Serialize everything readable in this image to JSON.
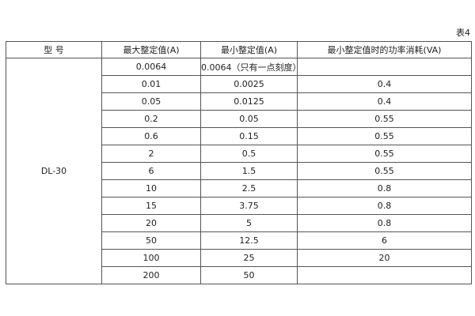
{
  "caption": "表4",
  "headers": [
    "型 号",
    "最大整定值(A)",
    "最小整定值(A)",
    "最小整定值时的功率消耗(VA)"
  ],
  "model": "DL-30",
  "rows": [
    [
      "0.0064",
      "0.0064（只有一点刻度）",
      ""
    ],
    [
      "0.01",
      "0.0025",
      "0.4"
    ],
    [
      "0.05",
      "0.0125",
      "0.4"
    ],
    [
      "0.2",
      "0.05",
      "0.55"
    ],
    [
      "0.6",
      "0.15",
      "0.55"
    ],
    [
      "2",
      "0.5",
      "0.55"
    ],
    [
      "6",
      "1.5",
      "0.55"
    ],
    [
      "10",
      "2.5",
      "0.8"
    ],
    [
      "15",
      "3.75",
      "0.8"
    ],
    [
      "20",
      "5",
      "0.8"
    ],
    [
      "50",
      "12.5",
      "6"
    ],
    [
      "100",
      "25",
      "20"
    ],
    [
      "200",
      "50",
      ""
    ]
  ]
}
